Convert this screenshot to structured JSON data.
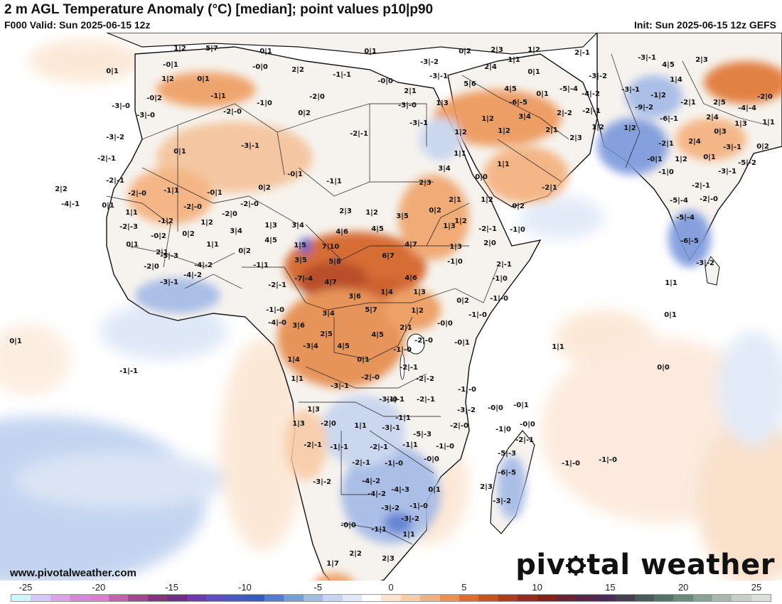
{
  "header": {
    "title": "2 m AGL Temperature Anomaly (°C) [median]; point values p10|p90",
    "valid": "F000 Valid: Sun 2025-06-15 12z",
    "init": "Init: Sun 2025-06-15 12z GEFS"
  },
  "footer": {
    "credit": "www.pivotalweather.com",
    "logo_left": "piv",
    "logo_right": "tal weather"
  },
  "colorbar": {
    "labels": [
      "-25",
      "-20",
      "-15",
      "-10",
      "-5",
      "0",
      "5",
      "10",
      "15",
      "20",
      "25"
    ],
    "colors": [
      "#cff4fb",
      "#d5c9f2",
      "#d6a5ec",
      "#dc83e0",
      "#e07ad6",
      "#c45fb8",
      "#a2449a",
      "#86347f",
      "#6f2c8e",
      "#6a3bb0",
      "#5e4cc9",
      "#4a55c9",
      "#3b57c6",
      "#5779d2",
      "#7a98dc",
      "#a3b9e6",
      "#c6d4ef",
      "#e0e8f6",
      "#ffffff",
      "#fbe5d2",
      "#f8cca8",
      "#f4b07c",
      "#ee8f4f",
      "#e06b2a",
      "#c9531b",
      "#b23c18",
      "#9a2a1a",
      "#85201e",
      "#702034",
      "#5b2548",
      "#4a2b55",
      "#45404f",
      "#4a5c5a",
      "#537368",
      "#6a8a7c",
      "#8aa197",
      "#a9b7ae",
      "#c7cec8",
      "#dcdfdb"
    ]
  },
  "points": [
    [
      "1|2",
      253,
      69
    ],
    [
      "5|7",
      298,
      69
    ],
    [
      "0|1",
      374,
      73
    ],
    [
      "0|1",
      521,
      73
    ],
    [
      "0|2",
      654,
      73
    ],
    [
      "2|3",
      699,
      71
    ],
    [
      "1|2",
      751,
      71
    ],
    [
      "2|-1",
      819,
      75
    ],
    [
      "-3|-1",
      910,
      82
    ],
    [
      "2|3",
      987,
      85
    ],
    [
      "-0|1",
      240,
      92
    ],
    [
      "-0|0",
      366,
      95
    ],
    [
      "2|2",
      419,
      99
    ],
    [
      "-3|-2",
      604,
      88
    ],
    [
      "2|4",
      690,
      95
    ],
    [
      "1|1",
      723,
      85
    ],
    [
      "4|5",
      940,
      92
    ],
    [
      "0|1",
      158,
      101
    ],
    [
      "1|2",
      236,
      112
    ],
    [
      "-1|-1",
      481,
      106
    ],
    [
      "-0|0",
      542,
      115
    ],
    [
      "-3|-1",
      617,
      108
    ],
    [
      "5|6",
      661,
      119
    ],
    [
      "0|1",
      751,
      102
    ],
    [
      "-3|-2",
      841,
      108
    ],
    [
      "1|4",
      951,
      113
    ],
    [
      "0|1",
      286,
      112
    ],
    [
      "-0|2",
      217,
      139
    ],
    [
      "-1|1",
      307,
      136
    ],
    [
      "-2|0",
      446,
      137
    ],
    [
      "2|1",
      577,
      129
    ],
    [
      "4|5",
      718,
      126
    ],
    [
      "0|1",
      763,
      133
    ],
    [
      "-5|-4",
      800,
      126
    ],
    [
      "-4|-2",
      831,
      133
    ],
    [
      "-3|-1",
      887,
      127
    ],
    [
      "-1|2",
      926,
      135
    ],
    [
      "2|5",
      1012,
      145
    ],
    [
      "-2|0",
      1076,
      137
    ],
    [
      "-3|-0",
      170,
      150
    ],
    [
      "-1|0",
      372,
      146
    ],
    [
      "-3|-0",
      573,
      149
    ],
    [
      "1|3",
      622,
      146
    ],
    [
      "-6|-5",
      729,
      145
    ],
    [
      "-2|-1",
      832,
      157
    ],
    [
      "-9|-2",
      906,
      152
    ],
    [
      "-2|1",
      968,
      145
    ],
    [
      "-4|-4",
      1051,
      153
    ],
    [
      "-3|-0",
      205,
      163
    ],
    [
      "-2|-0",
      327,
      158
    ],
    [
      "0|2",
      428,
      160
    ],
    [
      "3|4",
      738,
      165
    ],
    [
      "2|-2",
      794,
      160
    ],
    [
      "-6|-1",
      941,
      168
    ],
    [
      "2|4",
      1002,
      166
    ],
    [
      "1|3",
      1042,
      175
    ],
    [
      "1|1",
      1081,
      173
    ],
    [
      "-3|-1",
      589,
      174
    ],
    [
      "1|2",
      686,
      168
    ],
    [
      "2|1",
      776,
      184
    ],
    [
      "1|2",
      841,
      180
    ],
    [
      "1|2",
      886,
      181
    ],
    [
      "0|3",
      1013,
      186
    ],
    [
      "-3|-2",
      162,
      194
    ],
    [
      "-3|-1",
      352,
      206
    ],
    [
      "-2|-1",
      505,
      189
    ],
    [
      "1|2",
      648,
      187
    ],
    [
      "1|2",
      709,
      185
    ],
    [
      "2|3",
      810,
      195
    ],
    [
      "-2|1",
      937,
      203
    ],
    [
      "2|4",
      977,
      200
    ],
    [
      "-3|-1",
      1030,
      208
    ],
    [
      "0|2",
      1073,
      207
    ],
    [
      "-2|-1",
      150,
      224
    ],
    [
      "0|1",
      253,
      214
    ],
    [
      "1|1",
      647,
      217
    ],
    [
      "0|1",
      998,
      222
    ],
    [
      "-0|1",
      921,
      225
    ],
    [
      "1|2",
      958,
      225
    ],
    [
      "-5|-2",
      1051,
      230
    ],
    [
      "-2|-1",
      162,
      255
    ],
    [
      "-0|1",
      415,
      246
    ],
    [
      "-1|1",
      470,
      256
    ],
    [
      "3|4",
      625,
      238
    ],
    [
      "1|1",
      708,
      232
    ],
    [
      "-1|0",
      937,
      243
    ],
    [
      "-3|-1",
      1023,
      242
    ],
    [
      "2|2",
      86,
      267
    ],
    [
      "-4|-1",
      99,
      288
    ],
    [
      "-1|1",
      241,
      269
    ],
    [
      "-0|1",
      302,
      272
    ],
    [
      "0|2",
      372,
      265
    ],
    [
      "0|0",
      677,
      250
    ],
    [
      "2|3",
      598,
      258
    ],
    [
      "-2|1",
      773,
      265
    ],
    [
      "-2|-1",
      986,
      262
    ],
    [
      "-2|-0",
      193,
      273
    ],
    [
      "-5|-4",
      955,
      283
    ],
    [
      "-2|-0",
      997,
      281
    ],
    [
      "0|1",
      152,
      290
    ],
    [
      "-2|-0",
      271,
      292
    ],
    [
      "-2|-0",
      351,
      288
    ],
    [
      "2|1",
      640,
      282
    ],
    [
      "0|2",
      729,
      291
    ],
    [
      "1|1",
      185,
      300
    ],
    [
      "-2|0",
      323,
      302
    ],
    [
      "2|3",
      486,
      298
    ],
    [
      "1|2",
      523,
      300
    ],
    [
      "3|5",
      566,
      305
    ],
    [
      "0|2",
      612,
      297
    ],
    [
      "1|2",
      685,
      282
    ],
    [
      "-1|2",
      233,
      312
    ],
    [
      "1|2",
      291,
      314
    ],
    [
      "1|3",
      381,
      318
    ],
    [
      "3|4",
      419,
      318
    ],
    [
      "1|2",
      648,
      312
    ],
    [
      "-2|-3",
      181,
      320
    ],
    [
      "3|4",
      332,
      326
    ],
    [
      "4|6",
      481,
      327
    ],
    [
      "4|5",
      531,
      323
    ],
    [
      "1|3",
      632,
      319
    ],
    [
      "-2|-1",
      686,
      323
    ],
    [
      "-1|0",
      728,
      324
    ],
    [
      "-5|-4",
      964,
      307
    ],
    [
      "-0|2",
      223,
      333
    ],
    [
      "0|2",
      265,
      330
    ],
    [
      "4|5",
      381,
      339
    ],
    [
      "1|5",
      422,
      346
    ],
    [
      "7|10",
      465,
      348
    ],
    [
      "6|7",
      546,
      361
    ],
    [
      "4|7",
      578,
      345
    ],
    [
      "2|0",
      689,
      343
    ],
    [
      "0|1",
      186,
      345
    ],
    [
      "2|1",
      228,
      356
    ],
    [
      "1|1",
      299,
      345
    ],
    [
      "0|2",
      344,
      354
    ],
    [
      "1|3",
      641,
      348
    ],
    [
      "-6|-5",
      970,
      340
    ],
    [
      "-5|-3",
      238,
      361
    ],
    [
      "3|5",
      423,
      367
    ],
    [
      "5|8",
      471,
      369
    ],
    [
      "-1|0",
      640,
      369
    ],
    [
      "2|-1",
      709,
      373
    ],
    [
      "-3|-2",
      992,
      371
    ],
    [
      "-2|0",
      213,
      376
    ],
    [
      "-4|-2",
      271,
      388
    ],
    [
      "-4|-2",
      286,
      374
    ],
    [
      "-1|1",
      367,
      374
    ],
    [
      "-3|-1",
      238,
      398
    ],
    [
      "-7|-4",
      427,
      393
    ],
    [
      "4|7",
      465,
      398
    ],
    [
      "4|6",
      578,
      392
    ],
    [
      "-1|0",
      703,
      393
    ],
    [
      "1|1",
      944,
      399
    ],
    [
      "-2|-1",
      390,
      402
    ],
    [
      "1|4",
      544,
      412
    ],
    [
      "3|6",
      499,
      418
    ],
    [
      "1|3",
      590,
      412
    ],
    [
      "-1|-0",
      702,
      421
    ],
    [
      "0|2",
      651,
      424
    ],
    [
      "-1|-0",
      672,
      444
    ],
    [
      "-1|-0",
      387,
      437
    ],
    [
      "3|4",
      462,
      442
    ],
    [
      "5|7",
      522,
      437
    ],
    [
      "1|2",
      587,
      438
    ],
    [
      "0|1",
      943,
      444
    ],
    [
      "-4|-0",
      390,
      455
    ],
    [
      "3|6",
      420,
      459
    ],
    [
      "2|5",
      459,
      471
    ],
    [
      "4|5",
      531,
      472
    ],
    [
      "2|1",
      571,
      462
    ],
    [
      "-0|0",
      626,
      456
    ],
    [
      "0|1",
      22,
      481
    ],
    [
      "-3|4",
      437,
      488
    ],
    [
      "4|5",
      483,
      488
    ],
    [
      "-1|-0",
      566,
      493
    ],
    [
      "-2|-0",
      596,
      480
    ],
    [
      "-0|1",
      650,
      483
    ],
    [
      "1|1",
      785,
      489
    ],
    [
      "1|4",
      413,
      507
    ],
    [
      "0|1",
      511,
      507
    ],
    [
      "-1|-1",
      181,
      523
    ],
    [
      "1|1",
      418,
      534
    ],
    [
      "-3|-1",
      478,
      544
    ],
    [
      "-2|-0",
      521,
      532
    ],
    [
      "-2|-1",
      575,
      518
    ],
    [
      "-2|-2",
      598,
      534
    ],
    [
      "-1|-0",
      657,
      549
    ],
    [
      "0|0",
      933,
      518
    ],
    [
      "-1|-1",
      556,
      563
    ],
    [
      "-3|-0",
      546,
      563
    ],
    [
      "-2|-1",
      599,
      563
    ],
    [
      "-0|0",
      697,
      575
    ],
    [
      "-0|1",
      733,
      571
    ],
    [
      "1|3",
      441,
      577
    ],
    [
      "-3|-2",
      656,
      578
    ],
    [
      "-1|1",
      567,
      589
    ],
    [
      "1|3",
      420,
      597
    ],
    [
      "-2|0",
      462,
      597
    ],
    [
      "1|1",
      507,
      600
    ],
    [
      "-3|-1",
      550,
      603
    ],
    [
      "-5|-3",
      594,
      612
    ],
    [
      "-2|-0",
      646,
      600
    ],
    [
      "-1|0",
      708,
      605
    ],
    [
      "-0|0",
      742,
      598
    ],
    [
      "-2|-1",
      440,
      627
    ],
    [
      "-1|-1",
      477,
      630
    ],
    [
      "-2|-1",
      533,
      630
    ],
    [
      "-1|1",
      577,
      627
    ],
    [
      "-1|-0",
      626,
      629
    ],
    [
      "-2|-1",
      738,
      620
    ],
    [
      "-5|-3",
      713,
      639
    ],
    [
      "-1|-0",
      803,
      653
    ],
    [
      "-1|-0",
      855,
      648
    ],
    [
      "-2|-1",
      508,
      652
    ],
    [
      "-1|-0",
      554,
      653
    ],
    [
      "-0|0",
      607,
      647
    ],
    [
      "-6|-5",
      713,
      666
    ],
    [
      "-3|-2",
      453,
      679
    ],
    [
      "-4|-2",
      522,
      678
    ],
    [
      "-4|-3",
      563,
      690
    ],
    [
      "2|3",
      684,
      686
    ],
    [
      "-4|-2",
      530,
      696
    ],
    [
      "0|1",
      611,
      690
    ],
    [
      "-3|-2",
      706,
      706
    ],
    [
      "-3|-2",
      549,
      716
    ],
    [
      "-1|-0",
      589,
      713
    ],
    [
      "-3|-2",
      577,
      731
    ],
    [
      "-0|0",
      490,
      740
    ],
    [
      "-1|1",
      533,
      746
    ],
    [
      "1|1",
      575,
      753
    ],
    [
      "2|2",
      500,
      780
    ],
    [
      "2|3",
      546,
      787
    ],
    [
      "1|7",
      468,
      794
    ]
  ]
}
